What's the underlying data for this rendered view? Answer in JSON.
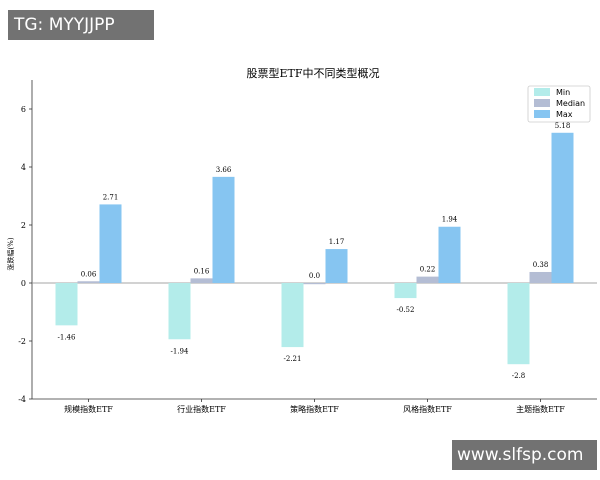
{
  "watermarks": {
    "top_left": "TG: MYYJJPP",
    "bottom_right": "www.slfsp.com"
  },
  "colors": {
    "min": "#b3ecea",
    "median": "#b4bdd4",
    "max": "#86c5f1",
    "axis": "#333333",
    "zero_line": "#888888"
  },
  "chart_data": {
    "type": "bar",
    "title": "股票型ETF中不同类型概况",
    "xlabel": "",
    "ylabel": "涨跌幅(%)",
    "ylim": [
      -4,
      7
    ],
    "yticks": [
      -4,
      -2,
      0,
      2,
      4,
      6
    ],
    "grid": false,
    "legend_position": "top-right",
    "categories": [
      "规模指数ETF",
      "行业指数ETF",
      "策略指数ETF",
      "风格指数ETF",
      "主题指数ETF"
    ],
    "series": [
      {
        "name": "Min",
        "values": [
          -1.46,
          -1.94,
          -2.21,
          -0.52,
          -2.8
        ],
        "labels": [
          "-1.46",
          "-1.94",
          "-2.21",
          "-0.52",
          "-2.8"
        ]
      },
      {
        "name": "Median",
        "values": [
          0.06,
          0.16,
          0.0,
          0.22,
          0.38
        ],
        "labels": [
          "0.06",
          "0.16",
          "0.0",
          "0.22",
          "0.38"
        ]
      },
      {
        "name": "Max",
        "values": [
          2.71,
          3.66,
          1.17,
          1.94,
          5.18
        ],
        "labels": [
          "2.71",
          "3.66",
          "1.17",
          "1.94",
          "5.18"
        ]
      }
    ]
  }
}
